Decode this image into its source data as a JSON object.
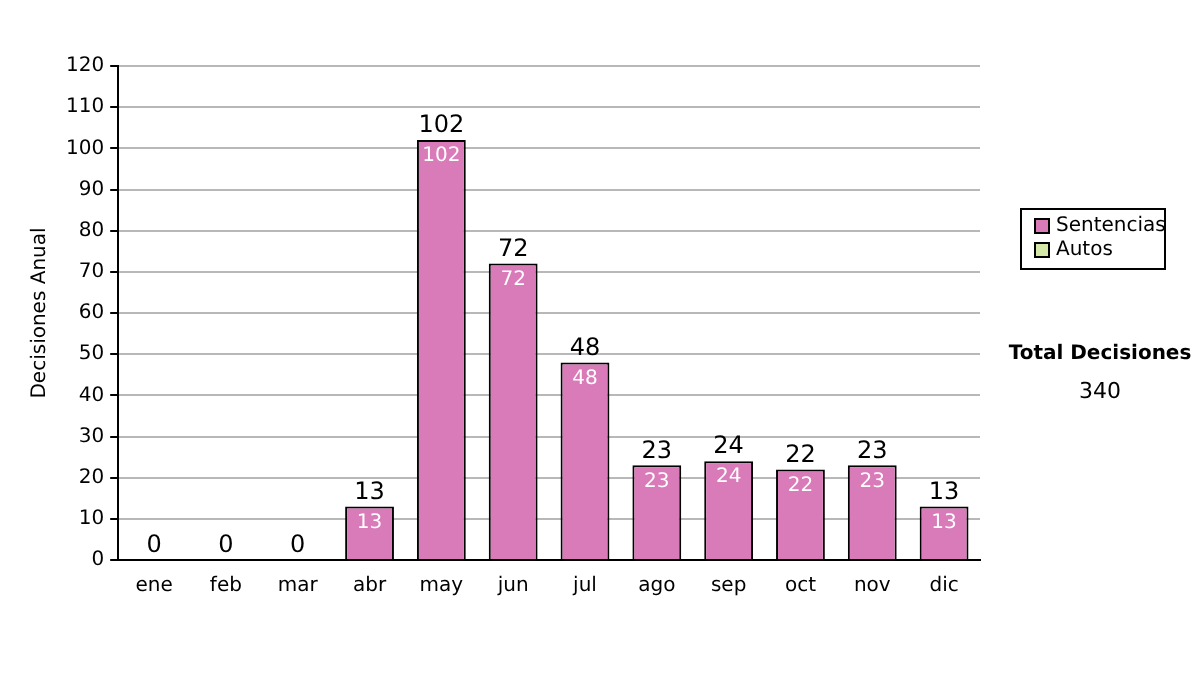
{
  "chart_data": {
    "type": "bar",
    "stacked": true,
    "ylabel": "Decisiones Anual",
    "categories": [
      "ene",
      "feb",
      "mar",
      "abr",
      "may",
      "jun",
      "jul",
      "ago",
      "sep",
      "oct",
      "nov",
      "dic"
    ],
    "series": [
      {
        "name": "Sentencias",
        "color": "#d97ab9",
        "values": [
          0,
          0,
          0,
          13,
          102,
          72,
          48,
          23,
          24,
          22,
          23,
          13
        ],
        "value_labels": [
          null,
          null,
          null,
          "13",
          "102",
          "72",
          "48",
          "23",
          "24",
          "22",
          "23",
          "13"
        ]
      },
      {
        "name": "Autos",
        "color": "#d5e8a8",
        "values": [
          0,
          0,
          0,
          0,
          0,
          0,
          0,
          0,
          0,
          0,
          0,
          0
        ]
      }
    ],
    "totals": [
      "0",
      "0",
      "0",
      "13",
      "102",
      "72",
      "48",
      "23",
      "24",
      "22",
      "23",
      "13"
    ],
    "ylim": [
      0,
      120
    ],
    "yticks": [
      0,
      10,
      20,
      30,
      40,
      50,
      60,
      70,
      80,
      90,
      100,
      110,
      120
    ],
    "grid": "y",
    "legend": "right",
    "annotations": [
      "Total Decisiones",
      "340"
    ]
  }
}
